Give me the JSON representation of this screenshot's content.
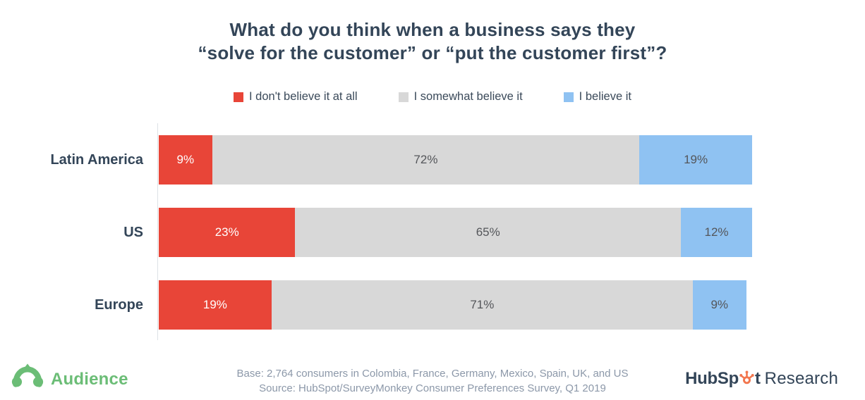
{
  "title": {
    "line1": "What do you think when a business says they",
    "line2": "“solve for the customer” or “put the customer first”?"
  },
  "chart_data": {
    "type": "bar",
    "orientation": "horizontal",
    "stacked": true,
    "categories": [
      "Latin America",
      "US",
      "Europe"
    ],
    "series": [
      {
        "name": "I don't believe it at all",
        "color": "#e84538",
        "label_color": "#ffffff",
        "values": [
          9,
          23,
          19
        ]
      },
      {
        "name": "I somewhat believe it",
        "color": "#d8d8d8",
        "label_color": "#54565a",
        "values": [
          72,
          65,
          71
        ]
      },
      {
        "name": "I believe it",
        "color": "#8fc2f2",
        "label_color": "#54565a",
        "values": [
          19,
          12,
          9
        ]
      }
    ],
    "value_format": "percent",
    "xlim": [
      0,
      100
    ],
    "grid": false,
    "legend_position": "top"
  },
  "footer": {
    "base_line": "Base: 2,764 consumers in Colombia, France, Germany, Mexico, Spain, UK, and US",
    "source_line": "Source: HubSpot/SurveyMonkey Consumer Preferences Survey, Q1 2019"
  },
  "branding": {
    "audience_label": "Audience",
    "audience_color": "#6bbd76",
    "hubspot_bold_1": "HubSp",
    "hubspot_bold_2": "t",
    "hubspot_regular": "Research",
    "hubspot_color": "#334558",
    "sprocket_color": "#f2764e"
  }
}
